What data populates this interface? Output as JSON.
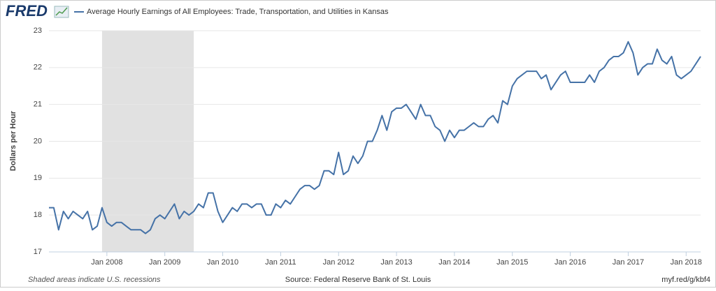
{
  "chart_data": {
    "type": "line",
    "logo": "FRED",
    "ylabel": "Dollars per Hour",
    "note": "Shaded areas indicate U.S. recessions",
    "source": "Source: Federal Reserve Bank of St. Louis",
    "link": "myf.red/g/kbf4",
    "recessions": [
      [
        "2007-12",
        "2009-06"
      ]
    ],
    "x": [
      "2007-01",
      "2007-02",
      "2007-03",
      "2007-04",
      "2007-05",
      "2007-06",
      "2007-07",
      "2007-08",
      "2007-09",
      "2007-10",
      "2007-11",
      "2007-12",
      "2008-01",
      "2008-02",
      "2008-03",
      "2008-04",
      "2008-05",
      "2008-06",
      "2008-07",
      "2008-08",
      "2008-09",
      "2008-10",
      "2008-11",
      "2008-12",
      "2009-01",
      "2009-02",
      "2009-03",
      "2009-04",
      "2009-05",
      "2009-06",
      "2009-07",
      "2009-08",
      "2009-09",
      "2009-10",
      "2009-11",
      "2009-12",
      "2010-01",
      "2010-02",
      "2010-03",
      "2010-04",
      "2010-05",
      "2010-06",
      "2010-07",
      "2010-08",
      "2010-09",
      "2010-10",
      "2010-11",
      "2010-12",
      "2011-01",
      "2011-02",
      "2011-03",
      "2011-04",
      "2011-05",
      "2011-06",
      "2011-07",
      "2011-08",
      "2011-09",
      "2011-10",
      "2011-11",
      "2011-12",
      "2012-01",
      "2012-02",
      "2012-03",
      "2012-04",
      "2012-05",
      "2012-06",
      "2012-07",
      "2012-08",
      "2012-09",
      "2012-10",
      "2012-11",
      "2012-12",
      "2013-01",
      "2013-02",
      "2013-03",
      "2013-04",
      "2013-05",
      "2013-06",
      "2013-07",
      "2013-08",
      "2013-09",
      "2013-10",
      "2013-11",
      "2013-12",
      "2014-01",
      "2014-02",
      "2014-03",
      "2014-04",
      "2014-05",
      "2014-06",
      "2014-07",
      "2014-08",
      "2014-09",
      "2014-10",
      "2014-11",
      "2014-12",
      "2015-01",
      "2015-02",
      "2015-03",
      "2015-04",
      "2015-05",
      "2015-06",
      "2015-07",
      "2015-08",
      "2015-09",
      "2015-10",
      "2015-11",
      "2015-12",
      "2016-01",
      "2016-02",
      "2016-03",
      "2016-04",
      "2016-05",
      "2016-06",
      "2016-07",
      "2016-08",
      "2016-09",
      "2016-10",
      "2016-11",
      "2016-12",
      "2017-01",
      "2017-02",
      "2017-03",
      "2017-04",
      "2017-05",
      "2017-06",
      "2017-07",
      "2017-08",
      "2017-09",
      "2017-10",
      "2017-11",
      "2017-12",
      "2018-01",
      "2018-02",
      "2018-03",
      "2018-04"
    ],
    "series": [
      {
        "name": "Average Hourly Earnings of All Employees: Trade, Transportation, and Utilities in Kansas",
        "color": "#4572a7",
        "values": [
          18.2,
          18.2,
          17.6,
          18.1,
          17.9,
          18.1,
          18.0,
          17.9,
          18.1,
          17.6,
          17.7,
          18.2,
          17.8,
          17.7,
          17.8,
          17.8,
          17.7,
          17.6,
          17.6,
          17.6,
          17.5,
          17.6,
          17.9,
          18.0,
          17.9,
          18.1,
          18.3,
          17.9,
          18.1,
          18.0,
          18.1,
          18.3,
          18.2,
          18.6,
          18.6,
          18.1,
          17.8,
          18.0,
          18.2,
          18.1,
          18.3,
          18.3,
          18.2,
          18.3,
          18.3,
          18.0,
          18.0,
          18.3,
          18.2,
          18.4,
          18.3,
          18.5,
          18.7,
          18.8,
          18.8,
          18.7,
          18.8,
          19.2,
          19.2,
          19.1,
          19.7,
          19.1,
          19.2,
          19.6,
          19.4,
          19.6,
          20.0,
          20.0,
          20.3,
          20.7,
          20.3,
          20.8,
          20.9,
          20.9,
          21.0,
          20.8,
          20.6,
          21.0,
          20.7,
          20.7,
          20.4,
          20.3,
          20.0,
          20.3,
          20.1,
          20.3,
          20.3,
          20.4,
          20.5,
          20.4,
          20.4,
          20.6,
          20.7,
          20.5,
          21.1,
          21.0,
          21.5,
          21.7,
          21.8,
          21.9,
          21.9,
          21.9,
          21.7,
          21.8,
          21.4,
          21.6,
          21.8,
          21.9,
          21.6,
          21.6,
          21.6,
          21.6,
          21.8,
          21.6,
          21.9,
          22.0,
          22.2,
          22.3,
          22.3,
          22.4,
          22.7,
          22.4,
          21.8,
          22.0,
          22.1,
          22.1,
          22.5,
          22.2,
          22.1,
          22.3,
          21.8,
          21.7,
          21.8,
          21.9,
          22.1,
          22.3
        ]
      }
    ],
    "xlim": [
      "2007-01",
      "2018-04"
    ],
    "xticks": [
      {
        "value": "2008-01",
        "label": "Jan 2008"
      },
      {
        "value": "2009-01",
        "label": "Jan 2009"
      },
      {
        "value": "2010-01",
        "label": "Jan 2010"
      },
      {
        "value": "2011-01",
        "label": "Jan 2011"
      },
      {
        "value": "2012-01",
        "label": "Jan 2012"
      },
      {
        "value": "2013-01",
        "label": "Jan 2013"
      },
      {
        "value": "2014-01",
        "label": "Jan 2014"
      },
      {
        "value": "2015-01",
        "label": "Jan 2015"
      },
      {
        "value": "2016-01",
        "label": "Jan 2016"
      },
      {
        "value": "2017-01",
        "label": "Jan 2017"
      },
      {
        "value": "2018-01",
        "label": "Jan 2018"
      }
    ],
    "ylim": [
      17,
      23
    ],
    "yticks": [
      17,
      18,
      19,
      20,
      21,
      22,
      23
    ],
    "grid": true
  }
}
